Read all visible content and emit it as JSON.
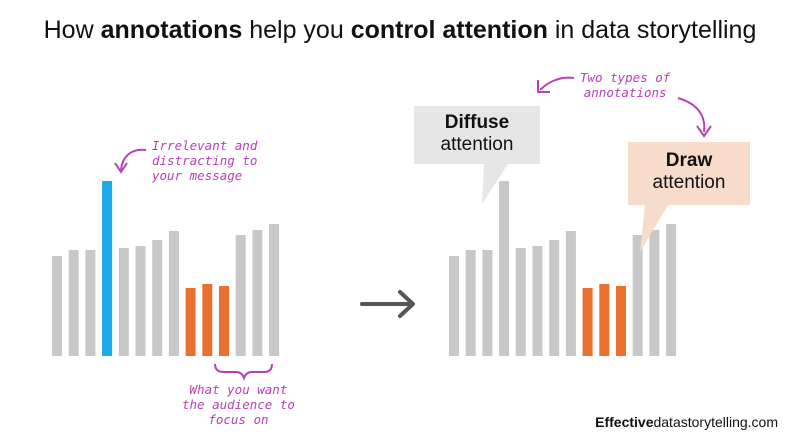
{
  "title": {
    "prefix": "How ",
    "bold1": "annotations",
    "middle": " help you ",
    "bold2": "control attention",
    "suffix": " in data storytelling"
  },
  "notes": {
    "irrelevant": [
      "Irrelevant and",
      "distracting to",
      "your message"
    ],
    "focus": [
      "What you want",
      "the audience to",
      "focus on"
    ],
    "types": [
      "Two types of",
      "annotations"
    ]
  },
  "callouts": {
    "diffuse_bold": "Diffuse",
    "diffuse_text": "attention",
    "draw_bold": "Draw",
    "draw_text": "attention"
  },
  "footer": {
    "bold": "Effective",
    "rest": "datastorytelling.com"
  },
  "colors": {
    "gray_bar": "#c8c8c8",
    "blue_bar": "#1ba9e9",
    "orange_bar": "#e9702e",
    "annotation": "#b641b5",
    "diffuse_box": "#e6e6e6",
    "draw_box": "#f7dccb",
    "arrow": "#555555"
  },
  "chart_data": [
    {
      "type": "bar",
      "values": [
        100,
        106,
        106,
        175,
        108,
        110,
        116,
        125,
        68,
        72,
        70,
        121,
        126,
        132
      ],
      "highlight": {
        "3": "blue",
        "8": "orange",
        "9": "orange",
        "10": "orange"
      }
    },
    {
      "type": "bar",
      "values": [
        100,
        106,
        106,
        175,
        108,
        110,
        116,
        125,
        68,
        72,
        70,
        121,
        126,
        132
      ],
      "highlight": {
        "8": "orange",
        "9": "orange",
        "10": "orange"
      }
    }
  ]
}
